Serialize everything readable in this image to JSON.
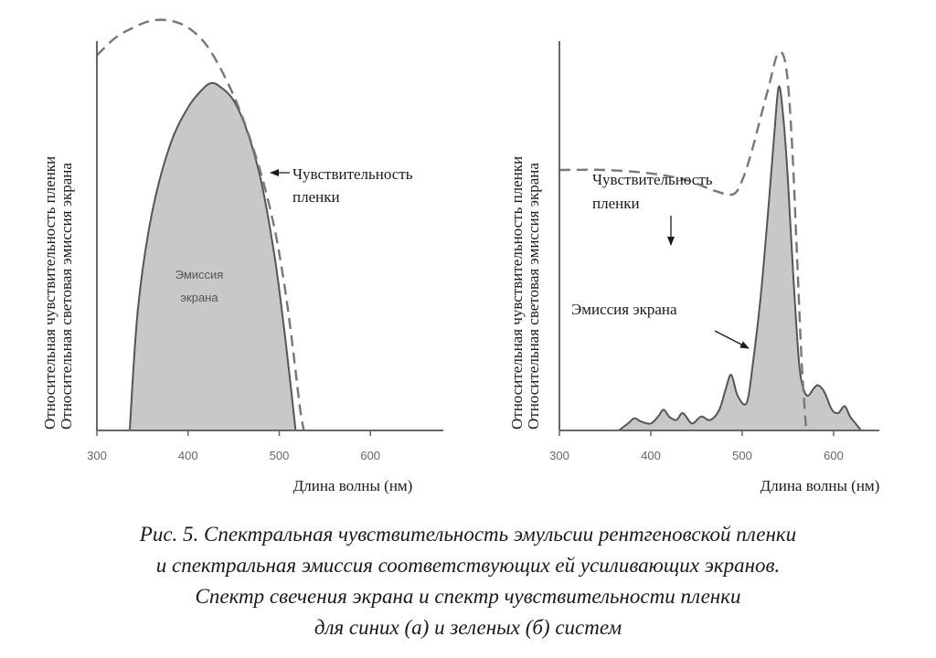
{
  "colors": {
    "axis": "#666666",
    "fill": "#c8c8c8",
    "curve": "#555555",
    "dashed": "#777777"
  },
  "chart_data": [
    {
      "type": "area",
      "panel": "a",
      "ylabel": [
        "Относительная чувствительность пленки",
        "Относительная световая эмиссия экрана"
      ],
      "xlabel": "Длина волны (нм)",
      "xlim": [
        300,
        680
      ],
      "ylim": [
        0,
        1.2
      ],
      "xticks": [
        300,
        400,
        500,
        600
      ],
      "xtick_labels": [
        "300",
        "400",
        "500",
        "600"
      ],
      "series": [
        {
          "name": "Эмиссия экрана",
          "style": "filled",
          "x": [
            336,
            345,
            360,
            380,
            400,
            415,
            425,
            435,
            450,
            465,
            480,
            495,
            505,
            513,
            518
          ],
          "y": [
            0,
            0.35,
            0.62,
            0.82,
            0.93,
            0.98,
            1.0,
            0.99,
            0.95,
            0.86,
            0.72,
            0.5,
            0.3,
            0.12,
            0
          ]
        },
        {
          "name": "Чувствительность пленки",
          "style": "dashed",
          "x": [
            300,
            320,
            340,
            360,
            380,
            400,
            420,
            440,
            460,
            480,
            495,
            505,
            512,
            518,
            523,
            527
          ],
          "y": [
            1.08,
            1.13,
            1.16,
            1.18,
            1.18,
            1.16,
            1.11,
            1.02,
            0.9,
            0.74,
            0.58,
            0.43,
            0.3,
            0.17,
            0.06,
            0
          ]
        }
      ],
      "annotations": [
        {
          "text": [
            "Эмиссия",
            "экрана"
          ],
          "target": "inside-area"
        },
        {
          "text": [
            "Чувствительность",
            "пленки"
          ],
          "target": "dashed-curve"
        }
      ]
    },
    {
      "type": "area",
      "panel": "b",
      "ylabel": [
        "Относительная чувствительность пленки",
        "Относительная световая эмиссия экрана"
      ],
      "xlabel": "Длина волны (нм)",
      "xlim": [
        300,
        650
      ],
      "ylim": [
        0,
        1.2
      ],
      "xticks": [
        300,
        400,
        500,
        600
      ],
      "xtick_labels": [
        "300",
        "400",
        "500",
        "600"
      ],
      "series": [
        {
          "name": "Эмиссия экрана",
          "style": "filled",
          "x": [
            365,
            375,
            382,
            390,
            400,
            408,
            414,
            420,
            428,
            435,
            445,
            455,
            465,
            475,
            482,
            488,
            495,
            505,
            512,
            520,
            528,
            535,
            540,
            545,
            550,
            556,
            562,
            567,
            572,
            578,
            583,
            590,
            598,
            605,
            612,
            618,
            624,
            630
          ],
          "y": [
            0,
            0.02,
            0.035,
            0.025,
            0.02,
            0.04,
            0.06,
            0.04,
            0.03,
            0.05,
            0.02,
            0.04,
            0.03,
            0.06,
            0.12,
            0.16,
            0.1,
            0.08,
            0.2,
            0.38,
            0.62,
            0.85,
            0.99,
            0.9,
            0.72,
            0.44,
            0.2,
            0.12,
            0.1,
            0.12,
            0.13,
            0.11,
            0.06,
            0.05,
            0.07,
            0.04,
            0.02,
            0
          ]
        },
        {
          "name": "Чувствительность пленки",
          "style": "dashed",
          "x": [
            300,
            350,
            400,
            440,
            470,
            490,
            500,
            510,
            520,
            530,
            538,
            545,
            550,
            555,
            560,
            565,
            570
          ],
          "y": [
            0.75,
            0.75,
            0.74,
            0.72,
            0.69,
            0.68,
            0.72,
            0.8,
            0.9,
            1.0,
            1.08,
            1.08,
            1.0,
            0.8,
            0.5,
            0.2,
            0
          ]
        }
      ],
      "annotations": [
        {
          "text": [
            "Чувствительность",
            "пленки"
          ],
          "target": "dashed-curve"
        },
        {
          "text": [
            "Эмиссия экрана"
          ],
          "target": "emission-curve"
        }
      ]
    }
  ],
  "caption": [
    "Рис. 5. Спектральная чувствительность эмульсии рентгеновской пленки",
    "и спектральная эмиссия соответствующих ей усиливающих экранов.",
    "Спектр свечения экрана и спектр чувствительности пленки",
    "для синих (а) и зеленых (б) систем"
  ]
}
